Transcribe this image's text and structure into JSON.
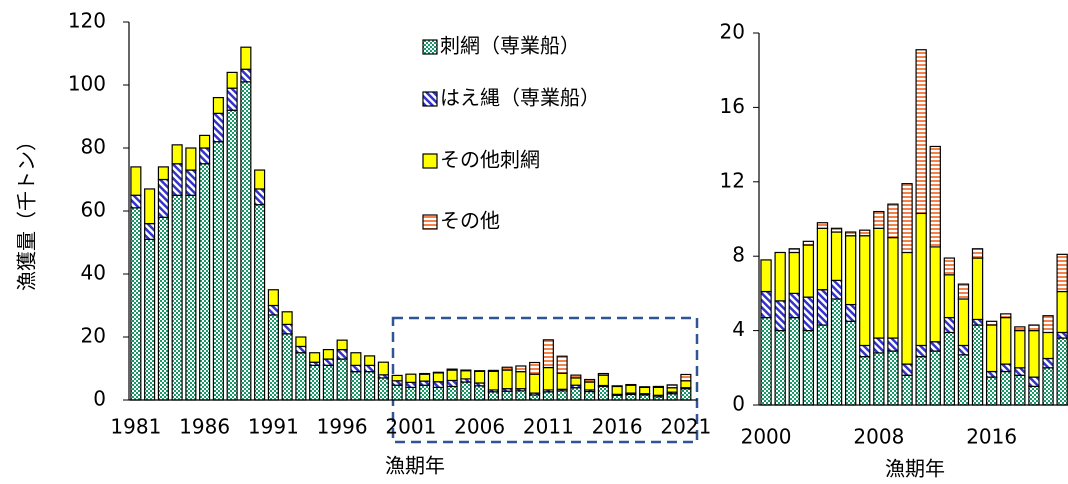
{
  "chart_data": [
    {
      "type": "bar",
      "stacked": true,
      "xlabel": "漁期年",
      "ylabel": "漁獲量（千トン）",
      "categories": [
        "1981",
        null,
        null,
        null,
        null,
        "1986",
        null,
        null,
        null,
        null,
        "1991",
        null,
        null,
        null,
        null,
        "1996",
        null,
        null,
        null,
        null,
        "2001",
        null,
        null,
        null,
        null,
        "2006",
        null,
        null,
        null,
        null,
        "2011",
        null,
        null,
        null,
        null,
        "2016",
        null,
        null,
        null,
        null,
        "2021"
      ],
      "series": [
        {
          "name": "刺網（専業船）",
          "color": "#159a68",
          "pattern": "dots",
          "values": [
            61,
            51,
            58,
            65,
            65,
            75,
            82,
            92,
            101,
            62,
            27,
            21,
            15,
            11,
            11,
            13,
            9,
            9,
            7,
            4.7,
            4.0,
            4.7,
            4.0,
            4.3,
            5.7,
            4.5,
            2.6,
            2.8,
            2.9,
            1.6,
            2.6,
            2.9,
            3.9,
            2.7,
            4.3,
            1.5,
            1.8,
            1.6,
            1.0,
            2.0,
            3.6
          ]
        },
        {
          "name": "はえ縄（専業船）",
          "color": "#3333cc",
          "pattern": "hatch",
          "values": [
            4,
            5,
            12,
            10,
            8,
            5,
            9,
            7,
            4,
            5,
            3,
            3,
            2,
            1,
            2,
            3,
            2,
            2,
            1,
            1.4,
            1.6,
            1.3,
            1.8,
            1.9,
            1.0,
            0.9,
            0.6,
            0.8,
            0.7,
            0.6,
            0.6,
            0.5,
            0.8,
            0.5,
            0.3,
            0.3,
            0.4,
            0.4,
            0.5,
            0.5,
            0.3
          ]
        },
        {
          "name": "その他刺網",
          "color": "#ffff00",
          "pattern": "solid",
          "values": [
            9,
            11,
            4,
            6,
            7,
            4,
            5,
            5,
            7,
            6,
            5,
            4,
            3,
            3,
            3,
            3,
            4,
            3,
            4,
            1.7,
            2.6,
            2.2,
            2.8,
            3.3,
            2.6,
            3.7,
            5.9,
            5.9,
            5.4,
            6.0,
            7.1,
            5.1,
            2.3,
            2.5,
            3.3,
            2.5,
            2.5,
            2.0,
            2.5,
            1.4,
            2.2
          ]
        },
        {
          "name": "その他",
          "color": "#f4804a",
          "pattern": "stripes",
          "values": [
            0,
            0,
            0,
            0,
            0,
            0,
            0,
            0,
            0,
            0,
            0,
            0,
            0,
            0,
            0,
            0,
            0,
            0,
            0,
            0,
            0,
            0.2,
            0.2,
            0.3,
            0.2,
            0.2,
            0.3,
            0.9,
            1.8,
            3.7,
            8.8,
            5.4,
            0.9,
            0.8,
            0.5,
            0.2,
            0.2,
            0.2,
            0.3,
            0.9,
            2.0
          ]
        }
      ],
      "ylim": [
        0,
        120
      ],
      "yticks": [
        0,
        20,
        40,
        60,
        80,
        100,
        120
      ],
      "legend": "top-right"
    },
    {
      "type": "bar",
      "stacked": true,
      "xlabel": "漁期年",
      "categories": [
        "2000",
        null,
        null,
        null,
        null,
        null,
        null,
        null,
        "2008",
        null,
        null,
        null,
        null,
        null,
        null,
        null,
        "2016",
        null,
        null,
        null,
        null,
        null
      ],
      "series": [
        {
          "color": "#159a68",
          "pattern": "dots",
          "values": [
            4.7,
            4.0,
            4.7,
            4.0,
            4.3,
            5.7,
            4.5,
            2.6,
            2.8,
            2.9,
            1.6,
            2.6,
            2.9,
            3.9,
            2.7,
            4.3,
            1.5,
            1.8,
            1.6,
            1.0,
            2.0,
            3.6
          ]
        },
        {
          "color": "#3333cc",
          "pattern": "hatch",
          "values": [
            1.4,
            1.6,
            1.3,
            1.8,
            1.9,
            1.0,
            0.9,
            0.6,
            0.8,
            0.7,
            0.6,
            0.6,
            0.5,
            0.8,
            0.5,
            0.3,
            0.3,
            0.4,
            0.4,
            0.5,
            0.5,
            0.3
          ]
        },
        {
          "color": "#ffff00",
          "pattern": "solid",
          "values": [
            1.7,
            2.6,
            2.2,
            2.8,
            3.3,
            2.6,
            3.7,
            5.9,
            5.9,
            5.4,
            6.0,
            7.1,
            5.1,
            2.3,
            2.5,
            3.3,
            2.5,
            2.5,
            2.0,
            2.5,
            1.4,
            2.2
          ]
        },
        {
          "color": "#f4804a",
          "pattern": "stripes",
          "values": [
            0,
            0,
            0.2,
            0.2,
            0.3,
            0.2,
            0.2,
            0.3,
            0.9,
            1.8,
            3.7,
            8.8,
            5.4,
            0.9,
            0.8,
            0.5,
            0.2,
            0.2,
            0.2,
            0.3,
            0.9,
            2.0
          ]
        }
      ],
      "ylim": [
        0,
        20
      ],
      "yticks": [
        0,
        4,
        8,
        12,
        16,
        20
      ]
    }
  ]
}
